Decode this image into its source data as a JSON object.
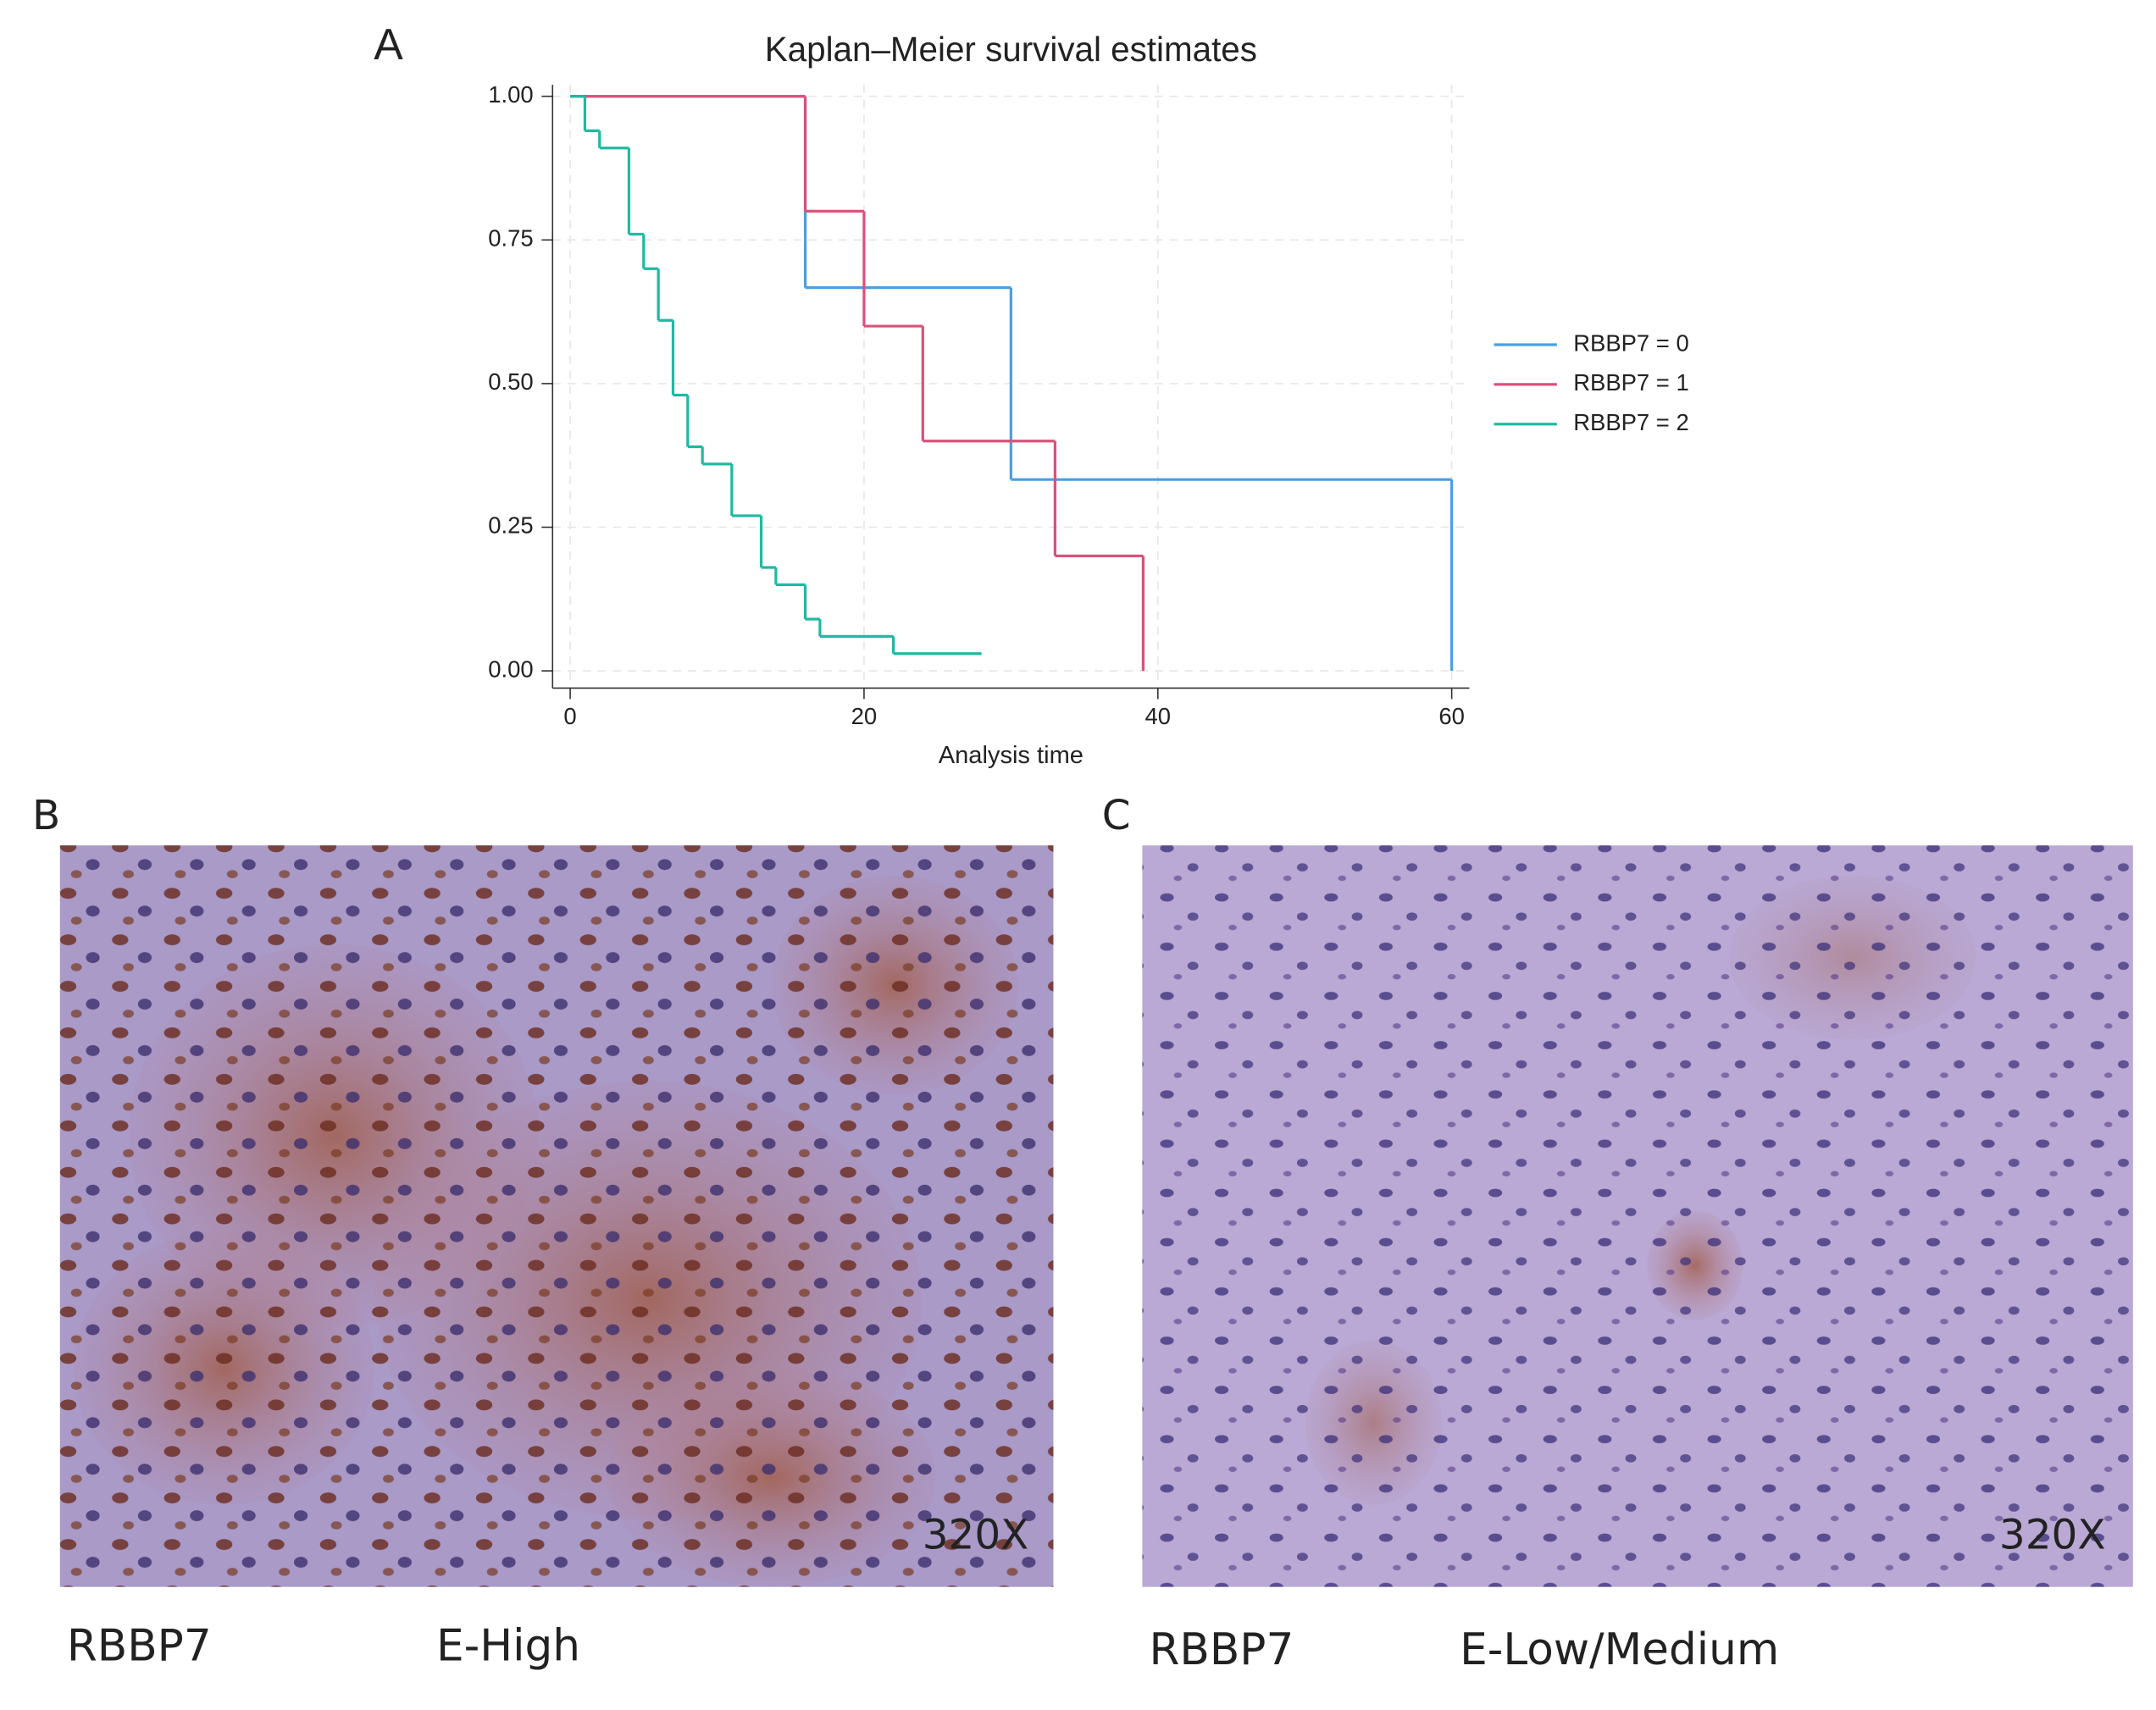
{
  "chart_data": {
    "type": "step",
    "panel_label": "A",
    "title": "Kaplan–Meier survival estimates",
    "x_label": "Analysis time",
    "xlim": [
      -1.2,
      61.2
    ],
    "ylim": [
      -0.03,
      1.02
    ],
    "xticks": [
      0,
      20,
      40,
      60
    ],
    "yticks": [
      {
        "value": 0,
        "label": "0.00"
      },
      {
        "value": 0.25,
        "label": "0.25"
      },
      {
        "value": 0.5,
        "label": "0.50"
      },
      {
        "value": 0.75,
        "label": "0.75"
      },
      {
        "value": 1,
        "label": "1.00"
      }
    ],
    "grid": true,
    "legend": "right",
    "series": [
      {
        "name": "RBBP7 = 0",
        "color": "#4a9fe0",
        "x": [
          0,
          16,
          30,
          60
        ],
        "values": [
          1,
          0.667,
          0.333,
          0
        ]
      },
      {
        "name": "RBBP7 = 1",
        "color": "#d9527a",
        "x": [
          0,
          16,
          20,
          24,
          33,
          39
        ],
        "values": [
          1,
          0.8,
          0.6,
          0.4,
          0.2,
          0
        ]
      },
      {
        "name": "RBBP7 = 2",
        "color": "#20b9a2",
        "x": [
          0,
          1,
          2,
          4,
          5,
          6,
          7,
          8,
          9,
          11,
          13,
          14,
          16,
          17,
          22,
          28
        ],
        "values": [
          1,
          0.94,
          0.91,
          0.76,
          0.7,
          0.61,
          0.48,
          0.39,
          0.36,
          0.27,
          0.18,
          0.15,
          0.09,
          0.06,
          0.03,
          0.03
        ]
      }
    ]
  },
  "panels": [
    {
      "label": "B",
      "magnification": "320X",
      "marker": "RBBP7",
      "expression": "E-High"
    },
    {
      "label": "C",
      "magnification": "320X",
      "marker": "RBBP7",
      "expression": "E-Low/Medium"
    }
  ]
}
